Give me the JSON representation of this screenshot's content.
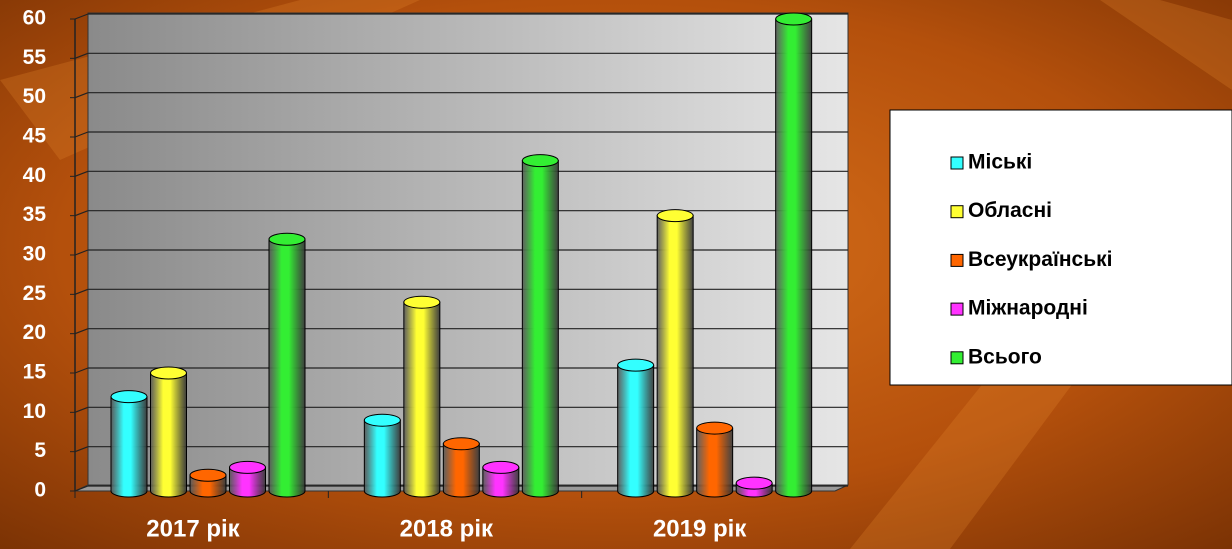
{
  "chart_data": {
    "type": "bar",
    "categories": [
      "2017 рік",
      "2018 рік",
      "2019 рік"
    ],
    "series": [
      {
        "name": "Міські",
        "color": "#33ffff",
        "values": [
          12,
          9,
          16
        ]
      },
      {
        "name": "Обласні",
        "color": "#ffff33",
        "values": [
          15,
          24,
          35
        ]
      },
      {
        "name": "Всеукраїнські",
        "color": "#ff6600",
        "values": [
          2,
          6,
          8
        ]
      },
      {
        "name": "Міжнародні",
        "color": "#ff33ff",
        "values": [
          3,
          3,
          1
        ]
      },
      {
        "name": "Всього",
        "color": "#33ee33",
        "values": [
          32,
          42,
          60
        ]
      }
    ],
    "ylim": [
      0,
      60
    ],
    "yticks": [
      0,
      5,
      10,
      15,
      20,
      25,
      30,
      35,
      40,
      45,
      50,
      55,
      60
    ],
    "grid": true
  }
}
